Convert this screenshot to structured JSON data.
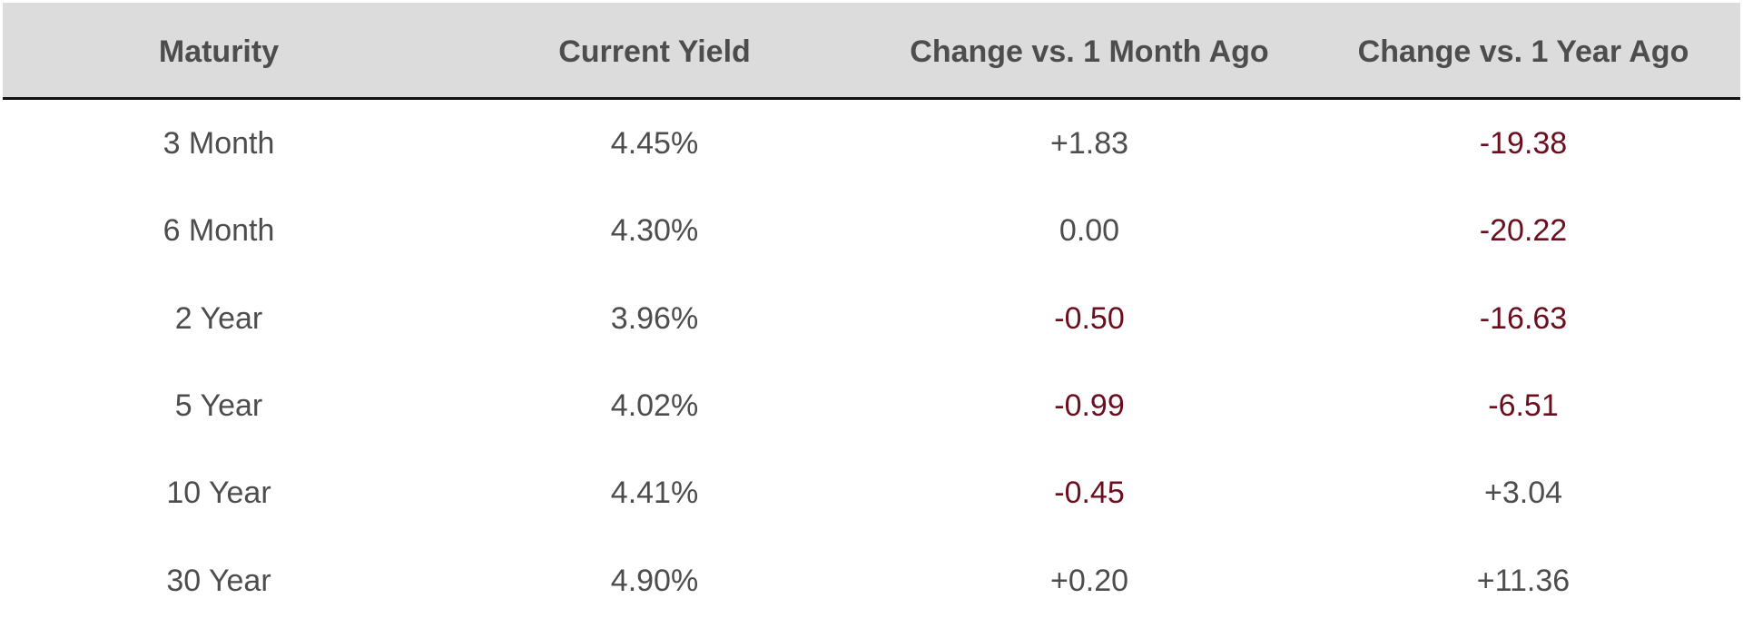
{
  "table": {
    "headers": [
      "Maturity",
      "Current Yield",
      "Change vs. 1 Month Ago",
      "Change vs. 1 Year Ago"
    ],
    "rows": [
      {
        "maturity": "3 Month",
        "yield": "4.45%",
        "change_1m": "+1.83",
        "change_1y": "-19.38"
      },
      {
        "maturity": "6 Month",
        "yield": "4.30%",
        "change_1m": "0.00",
        "change_1y": "-20.22"
      },
      {
        "maturity": "2 Year",
        "yield": "3.96%",
        "change_1m": "-0.50",
        "change_1y": "-16.63"
      },
      {
        "maturity": "5 Year",
        "yield": "4.02%",
        "change_1m": "-0.99",
        "change_1y": "-6.51"
      },
      {
        "maturity": "10 Year",
        "yield": "4.41%",
        "change_1m": "-0.45",
        "change_1y": "+3.04"
      },
      {
        "maturity": "30 Year",
        "yield": "4.90%",
        "change_1m": "+0.20",
        "change_1y": "+11.36"
      }
    ]
  },
  "colors": {
    "header_background": "#dcdcdc",
    "text": "#4d4d4d",
    "negative": "#6b0f1f",
    "header_rule": "#111111"
  }
}
